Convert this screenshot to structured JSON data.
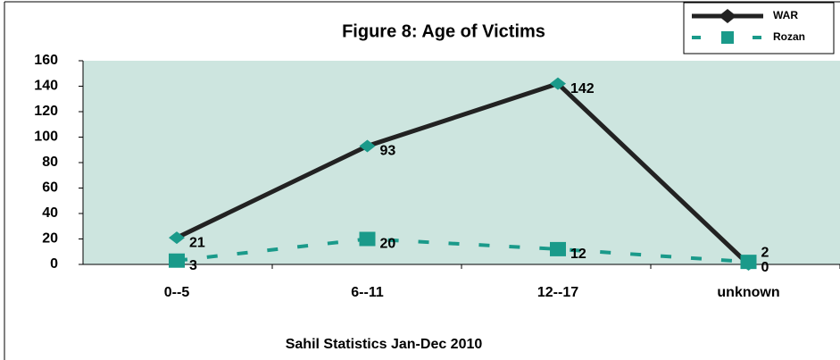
{
  "chart_data": {
    "type": "line",
    "title": "Figure 8: Age of Victims",
    "subtitle": "Sahil Statistics Jan-Dec 2010",
    "categories": [
      "0--5",
      "6--11",
      "12--17",
      "unknown"
    ],
    "series": [
      {
        "name": "WAR",
        "color": "#222222",
        "marker_color": "#1a9a8a",
        "values": [
          21,
          93,
          142,
          0
        ]
      },
      {
        "name": "Rozan",
        "color": "#1a9a8a",
        "marker_color": "#1a9a8a",
        "values": [
          3,
          20,
          12,
          2
        ]
      }
    ],
    "ylim": [
      0,
      160
    ],
    "yticks": [
      0,
      20,
      40,
      60,
      80,
      100,
      120,
      140,
      160
    ],
    "legend": "upper right",
    "plot_background": "#cde5df"
  }
}
